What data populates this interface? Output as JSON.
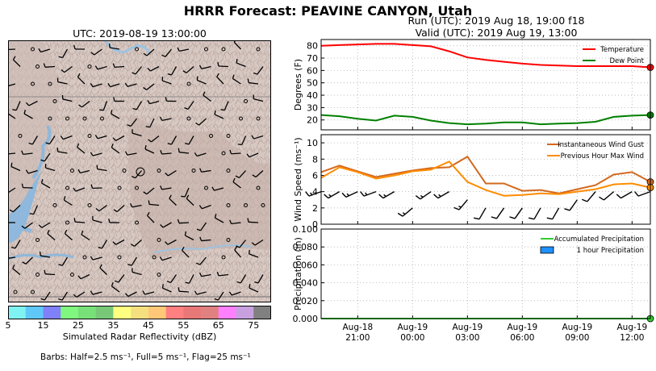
{
  "title": "HRRR Forecast: PEAVINE CANYON, Utah",
  "run_label": "Run (UTC): 2019 Aug 18, 19:00 f18",
  "valid_label": "Valid (UTC): 2019 Aug 19, 13:00",
  "map": {
    "title": "UTC: 2019-08-19 13:00:00",
    "colorbar": {
      "ticks": [
        "5",
        "15",
        "25",
        "35",
        "45",
        "55",
        "65",
        "75"
      ],
      "colors": [
        "#7ff2f2",
        "#60c8f8",
        "#8080f8",
        "#80f880",
        "#78e078",
        "#78c878",
        "#ffff80",
        "#f5e080",
        "#ffc878",
        "#ff8080",
        "#e87878",
        "#e08080",
        "#ff80ff",
        "#c8a0e0",
        "#808080"
      ],
      "label": "Simulated Radar Reflectivity (dBZ)"
    },
    "barbs_note": "Barbs: Half=2.5 ms⁻¹, Full=5 ms⁻¹, Flag=25 ms⁻¹"
  },
  "chart_data": [
    {
      "type": "line",
      "ylabel": "Degrees (F)",
      "ylim": [
        12,
        85
      ],
      "yticks": [
        20,
        30,
        40,
        50,
        60,
        70,
        80
      ],
      "x": [
        "2019-08-18 19:00",
        "2019-08-18 20:00",
        "2019-08-18 21:00",
        "2019-08-18 22:00",
        "2019-08-18 23:00",
        "2019-08-19 00:00",
        "2019-08-19 01:00",
        "2019-08-19 02:00",
        "2019-08-19 03:00",
        "2019-08-19 04:00",
        "2019-08-19 05:00",
        "2019-08-19 06:00",
        "2019-08-19 07:00",
        "2019-08-19 08:00",
        "2019-08-19 09:00",
        "2019-08-19 10:00",
        "2019-08-19 11:00",
        "2019-08-19 12:00",
        "2019-08-19 13:00"
      ],
      "series": [
        {
          "name": "Temperature",
          "color": "#ff0000",
          "values": [
            80,
            80.5,
            81,
            81.5,
            81.5,
            80.5,
            79.5,
            75.5,
            70.5,
            68.5,
            67,
            65.5,
            64.5,
            64,
            63.5,
            63.5,
            63.5,
            63.5,
            62.5
          ]
        },
        {
          "name": "Dew Point",
          "color": "#008000",
          "values": [
            24,
            23,
            21,
            19.5,
            23.5,
            22.5,
            19.5,
            17.5,
            16.5,
            17,
            18,
            18,
            16.5,
            17,
            17.5,
            18.5,
            22.5,
            23.5,
            24
          ]
        }
      ],
      "legend": "top-right",
      "grid": true
    },
    {
      "type": "line",
      "ylabel": "Wind Speed (ms⁻¹)",
      "ylim": [
        0,
        11
      ],
      "yticks": [
        0,
        2,
        4,
        6,
        8,
        10
      ],
      "x": [
        "2019-08-18 19:00",
        "2019-08-18 20:00",
        "2019-08-18 21:00",
        "2019-08-18 22:00",
        "2019-08-18 23:00",
        "2019-08-19 00:00",
        "2019-08-19 01:00",
        "2019-08-19 02:00",
        "2019-08-19 03:00",
        "2019-08-19 04:00",
        "2019-08-19 05:00",
        "2019-08-19 06:00",
        "2019-08-19 07:00",
        "2019-08-19 08:00",
        "2019-08-19 09:00",
        "2019-08-19 10:00",
        "2019-08-19 11:00",
        "2019-08-19 12:00",
        "2019-08-19 13:00"
      ],
      "series": [
        {
          "name": "Instantaneous Wind Gust",
          "color": "#d2691e",
          "values": [
            6.4,
            7.2,
            6.5,
            5.8,
            6.2,
            6.6,
            6.9,
            7.0,
            8.3,
            5.0,
            5.0,
            4.1,
            4.2,
            3.8,
            4.3,
            4.8,
            6.1,
            6.4,
            5.2
          ]
        },
        {
          "name": "Previous Hour Max Wind",
          "color": "#ff8c00",
          "values": [
            5.7,
            7.0,
            6.4,
            5.6,
            6.0,
            6.5,
            6.7,
            7.7,
            5.2,
            4.2,
            3.5,
            3.6,
            3.8,
            3.7,
            4.0,
            4.3,
            4.9,
            5.0,
            4.5
          ]
        }
      ],
      "barbs": {
        "y": [
          4.0,
          4.0,
          4.0,
          4.0,
          4.0,
          2.0,
          4.0,
          4.0,
          3.0,
          2.0,
          2.0,
          2.0,
          2.0,
          2.0,
          3.0,
          4.0,
          4.0,
          4.0,
          4.0
        ],
        "speed": [
          5.7,
          7.0,
          6.4,
          5.6,
          6.0,
          6.5,
          6.7,
          7.7,
          5.2,
          4.2,
          3.5,
          3.6,
          3.8,
          3.7,
          4.0,
          4.3,
          4.9,
          5.0,
          4.5
        ],
        "direction_deg": [
          250,
          240,
          245,
          250,
          240,
          230,
          235,
          240,
          220,
          210,
          215,
          215,
          210,
          210,
          215,
          220,
          230,
          240,
          250
        ]
      },
      "legend": "top-right",
      "grid": true
    },
    {
      "type": "bar",
      "ylabel": "Precipitation (in)",
      "ylim": [
        0,
        0.1
      ],
      "yticks": [
        "0.000",
        "0.020",
        "0.040",
        "0.060",
        "0.080",
        "0.100"
      ],
      "xtick_labels": [
        [
          "Aug-18",
          "21:00"
        ],
        [
          "Aug-19",
          "00:00"
        ],
        [
          "Aug-19",
          "03:00"
        ],
        [
          "Aug-19",
          "06:00"
        ],
        [
          "Aug-19",
          "09:00"
        ],
        [
          "Aug-19",
          "12:00"
        ]
      ],
      "xtick_positions": [
        "2019-08-18 21:00",
        "2019-08-19 00:00",
        "2019-08-19 03:00",
        "2019-08-19 06:00",
        "2019-08-19 09:00",
        "2019-08-19 12:00"
      ],
      "series": [
        {
          "name": "Accumulated Precipitation",
          "color": "#32cd32",
          "type": "line",
          "values": [
            0,
            0,
            0,
            0,
            0,
            0,
            0,
            0,
            0,
            0,
            0,
            0,
            0,
            0,
            0,
            0,
            0,
            0,
            0
          ]
        },
        {
          "name": "1 hour Precipitation",
          "color": "#1e90ff",
          "type": "bar",
          "values": [
            0,
            0,
            0,
            0,
            0,
            0,
            0,
            0,
            0,
            0,
            0,
            0,
            0,
            0,
            0,
            0,
            0,
            0,
            0
          ]
        }
      ],
      "legend": "top-right",
      "grid": true
    }
  ]
}
